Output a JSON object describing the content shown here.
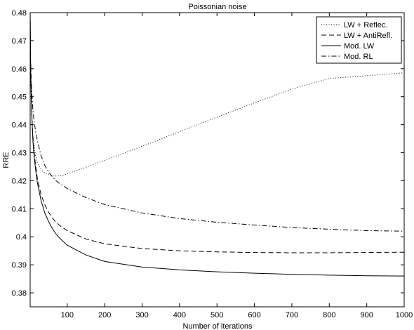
{
  "chart_data": {
    "type": "line",
    "title": "Poissonian noise",
    "xlabel": "Number of iterations",
    "ylabel": "RRE",
    "xlim": [
      1,
      1000
    ],
    "ylim": [
      0.375,
      0.48
    ],
    "xticks": [
      100,
      200,
      300,
      400,
      500,
      600,
      700,
      800,
      900,
      1000
    ],
    "yticks": [
      0.38,
      0.39,
      0.4,
      0.41,
      0.42,
      0.43,
      0.44,
      0.45,
      0.46,
      0.47,
      0.48
    ],
    "ytick_labels": [
      "0.38",
      "0.39",
      "0.4",
      "0.41",
      "0.42",
      "0.43",
      "0.44",
      "0.45",
      "0.46",
      "0.47",
      "0.48"
    ],
    "grid": false,
    "legend_position": "top-right",
    "series": [
      {
        "name": "LW + Reflec.",
        "style": "dotted",
        "color": "#000000",
        "x": [
          1,
          2,
          4,
          6,
          8,
          10,
          15,
          20,
          30,
          40,
          50,
          60,
          70,
          80,
          90,
          100,
          150,
          200,
          300,
          400,
          500,
          600,
          700,
          800,
          900,
          1000
        ],
        "y": [
          0.48,
          0.462,
          0.449,
          0.442,
          0.437,
          0.434,
          0.429,
          0.4265,
          0.424,
          0.4228,
          0.4222,
          0.4218,
          0.4217,
          0.4218,
          0.422,
          0.4225,
          0.4248,
          0.4273,
          0.4323,
          0.4375,
          0.4427,
          0.4478,
          0.4527,
          0.4565,
          0.4575,
          0.4585
        ]
      },
      {
        "name": "LW + AntiRefl.",
        "style": "dashed",
        "color": "#000000",
        "x": [
          1,
          2,
          4,
          6,
          8,
          10,
          15,
          20,
          30,
          40,
          50,
          60,
          70,
          80,
          100,
          150,
          200,
          300,
          400,
          500,
          600,
          700,
          800,
          900,
          1000
        ],
        "y": [
          0.48,
          0.463,
          0.45,
          0.442,
          0.436,
          0.432,
          0.426,
          0.421,
          0.415,
          0.4115,
          0.4088,
          0.4068,
          0.4052,
          0.404,
          0.4022,
          0.3992,
          0.3975,
          0.3958,
          0.395,
          0.3946,
          0.3944,
          0.3943,
          0.3943,
          0.3944,
          0.3945
        ]
      },
      {
        "name": "Mod. LW",
        "style": "solid",
        "color": "#000000",
        "x": [
          1,
          2,
          4,
          6,
          8,
          10,
          15,
          20,
          30,
          40,
          50,
          60,
          70,
          80,
          100,
          150,
          200,
          300,
          400,
          500,
          600,
          700,
          800,
          900,
          1000
        ],
        "y": [
          0.48,
          0.462,
          0.449,
          0.441,
          0.435,
          0.431,
          0.4245,
          0.4195,
          0.413,
          0.4085,
          0.4055,
          0.403,
          0.401,
          0.3995,
          0.397,
          0.3935,
          0.3912,
          0.3892,
          0.3882,
          0.3875,
          0.387,
          0.3866,
          0.3863,
          0.3861,
          0.386
        ]
      },
      {
        "name": "Mod. RL",
        "style": "dashdot",
        "color": "#000000",
        "x": [
          1,
          2,
          4,
          6,
          8,
          10,
          15,
          20,
          30,
          40,
          50,
          60,
          70,
          80,
          100,
          150,
          200,
          300,
          400,
          500,
          600,
          700,
          800,
          900,
          1000
        ],
        "y": [
          0.48,
          0.465,
          0.455,
          0.45,
          0.446,
          0.443,
          0.438,
          0.4345,
          0.429,
          0.4255,
          0.4232,
          0.4215,
          0.42,
          0.419,
          0.4172,
          0.414,
          0.4115,
          0.4085,
          0.4065,
          0.4052,
          0.4042,
          0.4033,
          0.4027,
          0.4022,
          0.402
        ]
      }
    ]
  }
}
